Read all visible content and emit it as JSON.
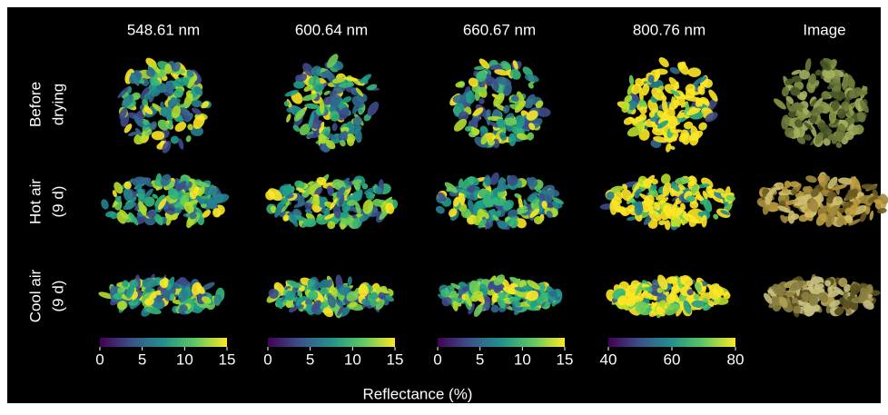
{
  "columns": [
    "548.61 nm",
    "600.64 nm",
    "660.67 nm",
    "800.76 nm",
    "Image"
  ],
  "rows": [
    [
      "Before",
      "drying"
    ],
    [
      "Hot air",
      "(9 d)"
    ],
    [
      "Cool air",
      "(9 d)"
    ]
  ],
  "colorbars": [
    {
      "range": [
        0,
        15
      ],
      "ticks": [
        0,
        5,
        10,
        15
      ]
    },
    {
      "range": [
        0,
        15
      ],
      "ticks": [
        0,
        5,
        10,
        15
      ]
    },
    {
      "range": [
        0,
        15
      ],
      "ticks": [
        0,
        5,
        10,
        15
      ]
    },
    {
      "range": [
        40,
        80
      ],
      "ticks": [
        40,
        60,
        80
      ]
    }
  ],
  "colorbar_label": "Reflectance (%)"
}
